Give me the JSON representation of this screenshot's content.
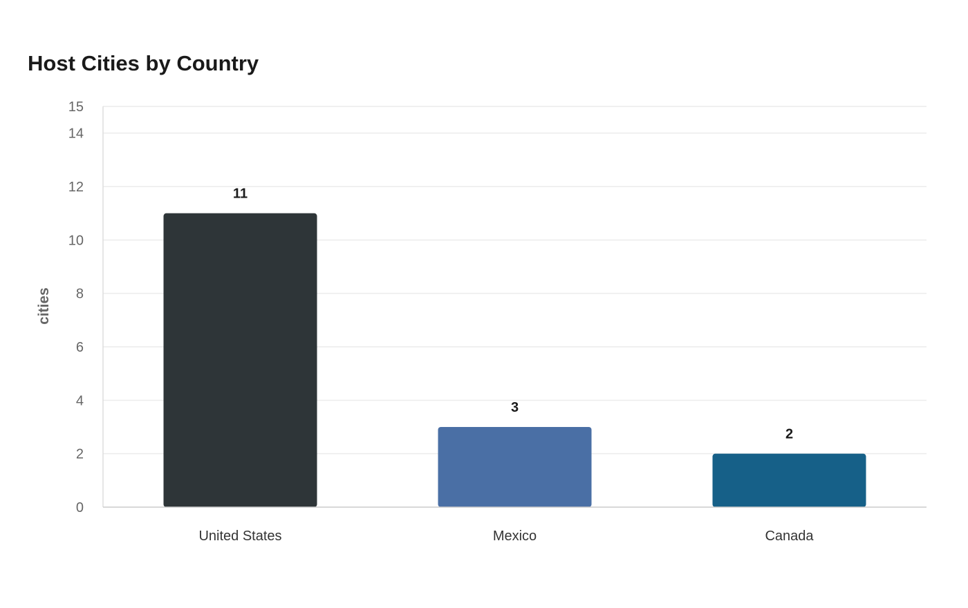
{
  "chart_data": {
    "type": "bar",
    "title": "Host Cities by Country",
    "xlabel": "",
    "ylabel": "cities",
    "categories": [
      "United States",
      "Mexico",
      "Canada"
    ],
    "values": [
      11,
      3,
      2
    ],
    "value_labels": [
      "11",
      "3",
      "2"
    ],
    "bar_colors": [
      "#2e3538",
      "#4a6fa5",
      "#166088"
    ],
    "ylim": [
      0,
      15
    ],
    "y_ticks": [
      0,
      2,
      4,
      6,
      8,
      10,
      12,
      14,
      15
    ],
    "grid": true,
    "legend": "none"
  }
}
